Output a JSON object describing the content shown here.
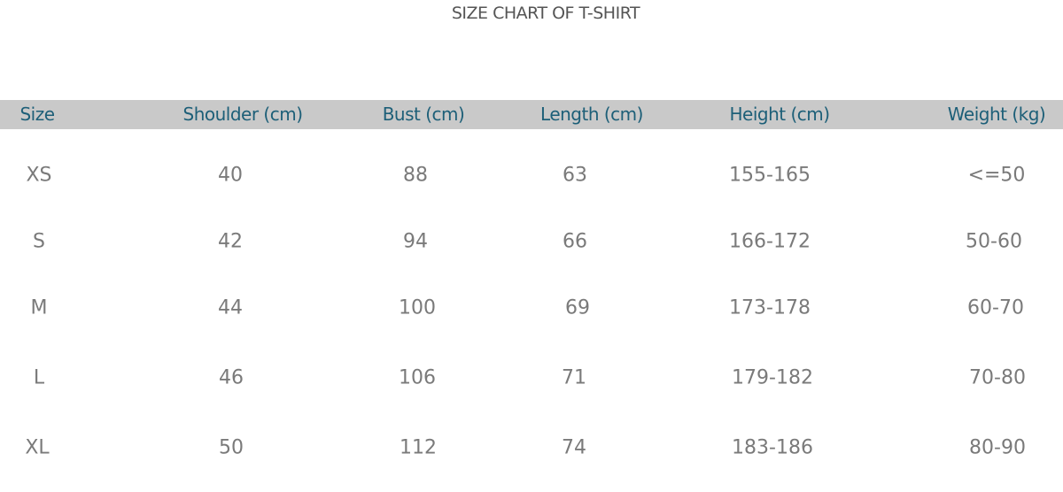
{
  "title": "SIZE CHART OF T-SHIRT",
  "header_color": "#1d5f78",
  "header_band_color": "#c9c9c9",
  "columns": [
    "Size",
    "Shoulder (cm)",
    "Bust (cm)",
    "Length (cm)",
    "Height (cm)",
    "Weight (kg)"
  ],
  "rows": [
    [
      "XS",
      "40",
      "88",
      "63",
      "155-165",
      "<=50"
    ],
    [
      "S",
      "42",
      "94",
      "66",
      "166-172",
      "50-60"
    ],
    [
      "M",
      "44",
      "100",
      "69",
      "173-178",
      "60-70"
    ],
    [
      "L",
      "46",
      "106",
      "71",
      "179-182",
      "70-80"
    ],
    [
      "XL",
      "50",
      "112",
      "74",
      "183-186",
      "80-90"
    ]
  ]
}
